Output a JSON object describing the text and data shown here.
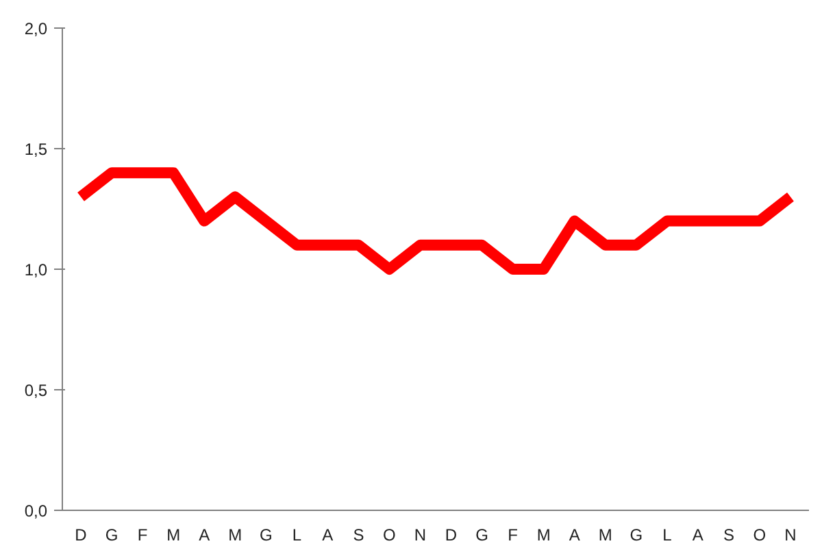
{
  "chart_data": {
    "type": "line",
    "categories": [
      "D",
      "G",
      "F",
      "M",
      "A",
      "M",
      "G",
      "L",
      "A",
      "S",
      "O",
      "N",
      "D",
      "G",
      "F",
      "M",
      "A",
      "M",
      "G",
      "L",
      "A",
      "S",
      "O",
      "N"
    ],
    "series": [
      {
        "color": "#ff0000",
        "values": [
          1.3,
          1.4,
          1.4,
          1.4,
          1.2,
          1.3,
          1.2,
          1.1,
          1.1,
          1.1,
          1.0,
          1.1,
          1.1,
          1.1,
          1.0,
          1.0,
          1.2,
          1.1,
          1.1,
          1.2,
          1.2,
          1.2,
          1.2,
          1.3
        ]
      }
    ],
    "ylim": [
      0,
      2
    ],
    "yticks": [
      {
        "value": 0,
        "label": "0,0"
      },
      {
        "value": 0.5,
        "label": "0,5"
      },
      {
        "value": 1,
        "label": "1,0"
      },
      {
        "value": 1.5,
        "label": "1,5"
      },
      {
        "value": 2,
        "label": "2,0"
      }
    ],
    "grid": false,
    "marker": "none",
    "line_style": "solid"
  }
}
